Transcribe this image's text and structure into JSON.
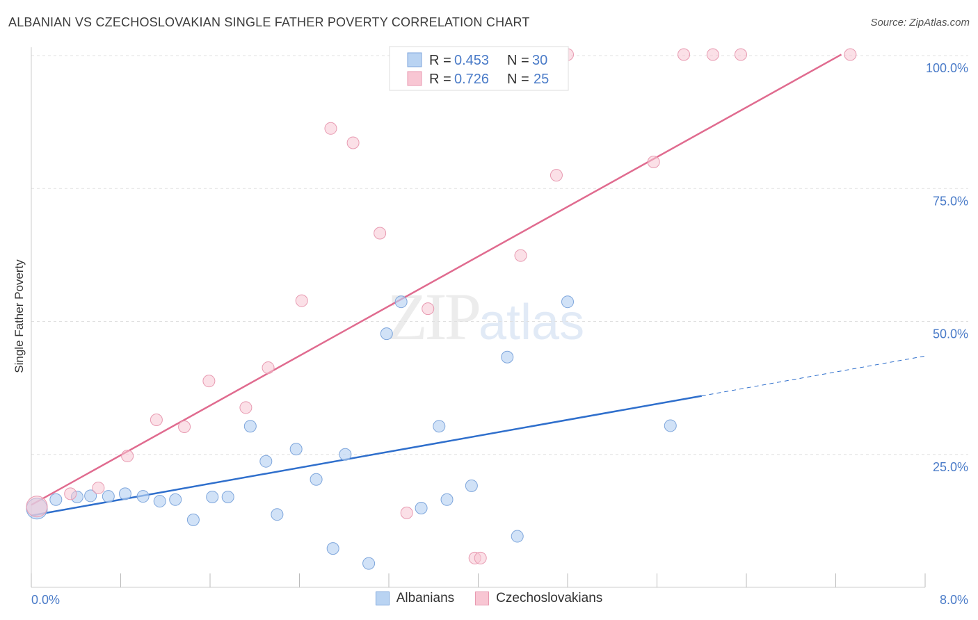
{
  "title": "ALBANIAN VS CZECHOSLOVAKIAN SINGLE FATHER POVERTY CORRELATION CHART",
  "source": "Source: ZipAtlas.com",
  "watermark": {
    "zip": "ZIP",
    "atlas": "atlas"
  },
  "colors": {
    "blue": "#4a7bc8",
    "blue_fill": "#b9d3f2",
    "blue_line": "#2f6fcc",
    "pink_fill": "#f8c6d3",
    "pink_line": "#e06b8f",
    "grid": "#e0e0e0"
  },
  "legend": {
    "rows": [
      {
        "r_label": "R = ",
        "r_value": "0.453",
        "n_label": "N = ",
        "n_value": "30"
      },
      {
        "r_label": "R = ",
        "r_value": "0.726",
        "n_label": "N = ",
        "n_value": "25"
      }
    ]
  },
  "bottom_legend": {
    "albanians": "Albanians",
    "czechoslovakians": "Czechoslovakians"
  },
  "chart_data": {
    "type": "scatter",
    "title": "ALBANIAN VS CZECHOSLOVAKIAN SINGLE FATHER POVERTY CORRELATION CHART",
    "xlabel": "",
    "ylabel": "Single Father Poverty",
    "xlim": [
      0,
      8
    ],
    "ylim": [
      0,
      100
    ],
    "x_tick_labels": [
      "0.0%",
      "8.0%"
    ],
    "y_ticks": [
      25,
      50,
      75,
      100
    ],
    "y_tick_labels": [
      "25.0%",
      "50.0%",
      "75.0%",
      "100.0%"
    ],
    "series": [
      {
        "name": "Albanians",
        "r": 0.453,
        "n": 30,
        "points": [
          [
            0.05,
            14.8
          ],
          [
            0.22,
            16.5
          ],
          [
            0.41,
            17.0
          ],
          [
            0.53,
            17.2
          ],
          [
            0.69,
            17.1
          ],
          [
            0.84,
            17.6
          ],
          [
            1.0,
            17.1
          ],
          [
            1.15,
            16.2
          ],
          [
            1.29,
            16.5
          ],
          [
            1.45,
            12.7
          ],
          [
            1.62,
            17.0
          ],
          [
            1.76,
            17.0
          ],
          [
            1.96,
            30.3
          ],
          [
            2.1,
            23.7
          ],
          [
            2.2,
            13.7
          ],
          [
            2.37,
            26.0
          ],
          [
            2.55,
            20.3
          ],
          [
            2.7,
            7.3
          ],
          [
            2.81,
            25.0
          ],
          [
            3.02,
            4.5
          ],
          [
            3.18,
            47.7
          ],
          [
            3.31,
            53.7
          ],
          [
            3.49,
            14.9
          ],
          [
            3.65,
            30.3
          ],
          [
            3.72,
            16.5
          ],
          [
            3.94,
            19.1
          ],
          [
            4.26,
            43.3
          ],
          [
            4.35,
            9.6
          ],
          [
            4.8,
            53.7
          ],
          [
            5.72,
            30.4
          ]
        ],
        "trend": {
          "x0": 0.0,
          "y0": 13.5,
          "x1": 6.0,
          "y1": 36.0,
          "dash_x1": 8.0,
          "dash_y1": 43.5
        }
      },
      {
        "name": "Czechoslovakians",
        "r": 0.726,
        "n": 25,
        "points": [
          [
            0.05,
            15.2
          ],
          [
            0.35,
            17.6
          ],
          [
            0.6,
            18.7
          ],
          [
            0.86,
            24.7
          ],
          [
            1.12,
            31.5
          ],
          [
            1.37,
            30.2
          ],
          [
            1.59,
            38.8
          ],
          [
            1.92,
            33.8
          ],
          [
            2.12,
            41.3
          ],
          [
            2.42,
            53.9
          ],
          [
            2.68,
            86.3
          ],
          [
            2.88,
            83.6
          ],
          [
            3.12,
            66.6
          ],
          [
            3.36,
            14.0
          ],
          [
            3.55,
            52.4
          ],
          [
            3.97,
            5.5
          ],
          [
            4.02,
            5.5
          ],
          [
            4.38,
            62.4
          ],
          [
            4.7,
            77.5
          ],
          [
            4.8,
            100.2
          ],
          [
            5.57,
            80.0
          ],
          [
            5.84,
            100.2
          ],
          [
            6.1,
            100.2
          ],
          [
            6.35,
            100.2
          ],
          [
            7.33,
            100.2
          ]
        ],
        "trend": {
          "x0": 0.0,
          "y0": 15.5,
          "x1": 7.25,
          "y1": 100.2
        }
      }
    ]
  }
}
